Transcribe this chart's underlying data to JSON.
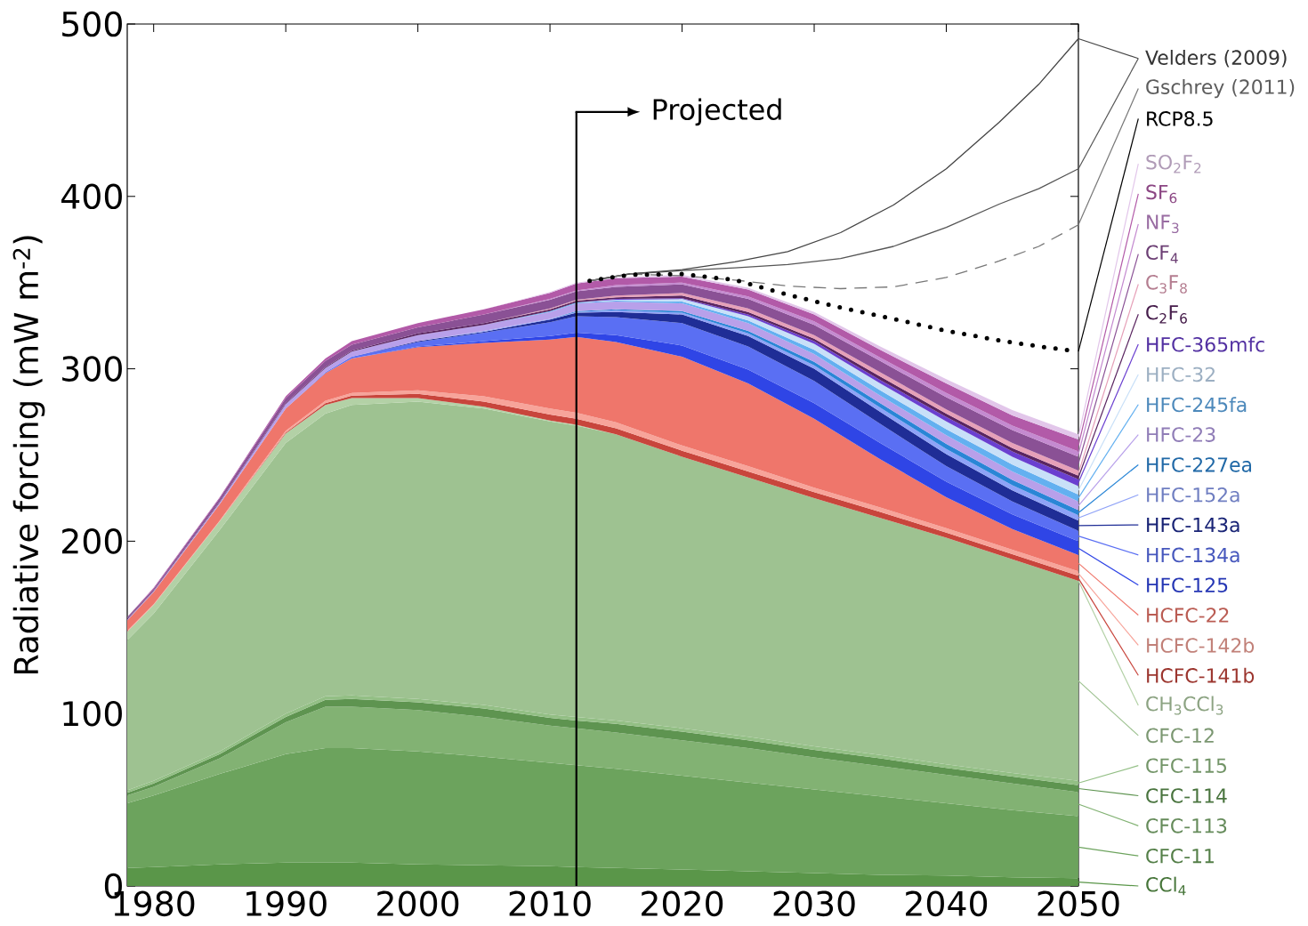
{
  "chart_data": {
    "type": "area",
    "stacked": true,
    "legend": "right",
    "ylabel": "Radiative forcing (mW m$^{-2}$)",
    "x": [
      1978,
      1980,
      1985,
      1990,
      1993,
      1995,
      2000,
      2005,
      2010,
      2012,
      2015,
      2020,
      2025,
      2030,
      2035,
      2040,
      2045,
      2050
    ],
    "xlim": [
      1978,
      2050
    ],
    "ylim": [
      0,
      500
    ],
    "xticks": [
      1980,
      1990,
      2000,
      2010,
      2020,
      2030,
      2040,
      2050
    ],
    "yticks": [
      0,
      100,
      200,
      300,
      400,
      500
    ],
    "ref_lines": [
      {
        "axis": "x",
        "value": 2012,
        "label": "Projected"
      }
    ],
    "series": [
      {
        "name": "CCl$_{4}$",
        "color": "#5a9649",
        "values": [
          10.5,
          11,
          12.5,
          13.5,
          13.5,
          13.5,
          12.5,
          12,
          11.5,
          11,
          10.5,
          9.5,
          8.5,
          7.5,
          6.5,
          6,
          5,
          4.5
        ]
      },
      {
        "name": "CFC-11",
        "color": "#6ca35d",
        "values": [
          37.5,
          41.5,
          52.5,
          63,
          66.5,
          66.5,
          65.5,
          63,
          60,
          59,
          57.5,
          54.5,
          51.5,
          48.5,
          45.5,
          42,
          39,
          36
        ]
      },
      {
        "name": "CFC-113",
        "color": "#82b273",
        "values": [
          4.5,
          5,
          9,
          18.5,
          24,
          24,
          24,
          23,
          21.5,
          21.5,
          21,
          20.5,
          20,
          18.5,
          17.5,
          16.5,
          15.5,
          14
        ]
      },
      {
        "name": "CFC-114",
        "color": "#5e9450",
        "values": [
          1.5,
          2,
          2.5,
          3,
          4,
          4.5,
          4.5,
          5,
          4.5,
          4.5,
          5,
          5,
          4.5,
          4.5,
          4.5,
          4,
          4,
          4
        ]
      },
      {
        "name": "CFC-115",
        "color": "#93bf85",
        "values": [
          1.5,
          1.5,
          1.5,
          2,
          2,
          2,
          2,
          2,
          2,
          2,
          2,
          2,
          2,
          2,
          2,
          2,
          2,
          2.5
        ]
      },
      {
        "name": "CFC-12",
        "color": "#9ec291",
        "values": [
          87,
          97,
          128.5,
          157,
          164,
          168.5,
          172.5,
          172,
          170,
          169,
          166,
          157.5,
          150.5,
          144,
          137.5,
          131.5,
          124,
          116
        ]
      },
      {
        "name": "CH$_{3}$CCl$_{3}$",
        "color": "#b3d1a6",
        "values": [
          5,
          5,
          5,
          5.5,
          5,
          4,
          2,
          1,
          0.5,
          0.5,
          0,
          0,
          0,
          0,
          0,
          0,
          0,
          0
        ]
      },
      {
        "name": "HCFC-141b",
        "color": "#c8453c",
        "values": [
          0,
          0,
          0,
          0.5,
          1,
          1.5,
          2.5,
          3,
          3.5,
          3.5,
          3.5,
          3.5,
          3.5,
          3.5,
          3.5,
          3,
          3,
          3
        ]
      },
      {
        "name": "HCFC-142b",
        "color": "#f7a49a",
        "values": [
          0.5,
          0.5,
          0.5,
          1,
          1.5,
          1.5,
          2,
          3,
          3.5,
          3.5,
          3.5,
          3,
          3,
          2.5,
          2.5,
          2.5,
          2.5,
          2.5
        ]
      },
      {
        "name": "HCFC-22",
        "color": "#ef766b",
        "values": [
          6,
          7,
          9.5,
          13,
          16,
          20,
          25,
          31,
          40,
          44,
          46.5,
          51.5,
          48,
          40,
          28,
          18,
          12,
          9.5
        ]
      },
      {
        "name": "HFC-125",
        "color": "#2f45e6",
        "values": [
          null,
          null,
          null,
          null,
          null,
          0,
          0.5,
          1,
          2,
          2.5,
          4,
          6.5,
          8,
          9,
          9.5,
          9,
          8.5,
          8
        ]
      },
      {
        "name": "HFC-134a",
        "color": "#5a6ff3",
        "values": [
          null,
          null,
          null,
          0,
          0.5,
          1,
          2.5,
          5,
          8,
          9.5,
          10.5,
          13,
          13.5,
          13,
          11,
          9,
          7.5,
          6
        ]
      },
      {
        "name": "HFC-143a",
        "color": "#1f2d96",
        "values": [
          null,
          null,
          null,
          null,
          null,
          0,
          0.5,
          0.5,
          1.5,
          2,
          3,
          5,
          6,
          7,
          7,
          7,
          6.5,
          6
        ]
      },
      {
        "name": "HFC-152a",
        "color": "#8fa2f7",
        "values": [
          null,
          null,
          null,
          null,
          null,
          null,
          0,
          0.5,
          0.5,
          0.5,
          1,
          1,
          1.5,
          2,
          2.5,
          3,
          3,
          3
        ]
      },
      {
        "name": "HFC-227ea",
        "color": "#2a86d6",
        "values": [
          null,
          null,
          null,
          null,
          null,
          null,
          null,
          null,
          0,
          0.5,
          0.5,
          1,
          1.5,
          2,
          2.5,
          3,
          3,
          3
        ]
      },
      {
        "name": "HFC-23",
        "color": "#b8a0ea",
        "values": [
          0.5,
          0.5,
          1,
          2.5,
          2.5,
          3,
          3.5,
          3.5,
          4,
          4.5,
          4.5,
          4.5,
          4.5,
          4.5,
          4.5,
          5,
          5,
          5
        ]
      },
      {
        "name": "HFC-245fa",
        "color": "#63b0f0",
        "values": [
          null,
          null,
          null,
          null,
          null,
          null,
          null,
          0,
          0.5,
          0.5,
          0.5,
          1,
          1.5,
          2.5,
          3,
          3.5,
          4,
          4
        ]
      },
      {
        "name": "HFC-32",
        "color": "#c8e0f8",
        "values": [
          null,
          null,
          null,
          null,
          null,
          null,
          null,
          null,
          null,
          0,
          0.5,
          1.5,
          2.5,
          3.5,
          4,
          4.5,
          4.5,
          5
        ]
      },
      {
        "name": "HFC-365mfc",
        "color": "#6a3fd0",
        "values": [
          null,
          null,
          null,
          null,
          null,
          null,
          null,
          null,
          null,
          0,
          0.5,
          0.5,
          1,
          1.5,
          2,
          2.5,
          3,
          4
        ]
      },
      {
        "name": "C$_{2}$F$_{6}$",
        "color": "#5a2560",
        "values": [
          0.5,
          0.5,
          0.5,
          0.5,
          0.5,
          0.5,
          1,
          1,
          1,
          1,
          1,
          1.5,
          1.5,
          1.5,
          2,
          2,
          2,
          2
        ]
      },
      {
        "name": "C$_{3}$F$_{8}$",
        "color": "#e6a0b8",
        "values": [
          null,
          null,
          null,
          null,
          null,
          null,
          null,
          0,
          0.5,
          0.5,
          1,
          1.5,
          2,
          2,
          2.5,
          2.5,
          3,
          3
        ]
      },
      {
        "name": "CF$_{4}$",
        "color": "#8a5195",
        "values": [
          1,
          1,
          2,
          3,
          3.5,
          3.5,
          3.5,
          5,
          5,
          5,
          5,
          5,
          5.5,
          6,
          6.5,
          7,
          7.5,
          8
        ]
      },
      {
        "name": "NF$_{3}$",
        "color": "#c48ad0",
        "values": [
          null,
          null,
          null,
          null,
          null,
          null,
          null,
          0,
          0.5,
          0.5,
          1,
          1,
          1.5,
          2,
          2,
          2.5,
          2.5,
          3
        ]
      },
      {
        "name": "SF$_{6}$",
        "color": "#b25aa8",
        "values": [
          0,
          0.5,
          0.5,
          1,
          1.5,
          2,
          2.5,
          3,
          3.5,
          4,
          4,
          3.5,
          4,
          4,
          4.5,
          5.5,
          6,
          7
        ]
      },
      {
        "name": "SO$_{2}$F$_{2}$",
        "color": "#e2c6ea",
        "values": [
          null,
          null,
          null,
          null,
          null,
          null,
          null,
          0,
          0.5,
          0.5,
          0.5,
          1,
          1,
          1.5,
          2,
          2.5,
          3,
          3
        ]
      },
      {
        "type": "line",
        "name": "Velders (2009)",
        "color": "#444444",
        "line_style": "solid",
        "x": [
          2013,
          2016,
          2020,
          2024,
          2028,
          2032,
          2036,
          2040,
          2044,
          2047,
          2050
        ],
        "values": [
          351,
          355,
          357.5,
          362,
          368,
          379,
          395,
          416,
          443,
          465,
          491.5
        ]
      },
      {
        "type": "line",
        "color": "#555555",
        "line_style": "solid",
        "x": [
          2013,
          2016,
          2020,
          2024,
          2028,
          2032,
          2036,
          2040,
          2044,
          2047,
          2050
        ],
        "values": [
          351,
          355,
          357,
          358.5,
          360.5,
          364,
          371,
          382,
          395.5,
          404.5,
          416
        ]
      },
      {
        "type": "line",
        "name": "Gschrey (2011)",
        "color": "#777777",
        "line_style": "dashed",
        "x": [
          2013,
          2016,
          2020,
          2024,
          2028,
          2032,
          2036,
          2040,
          2044,
          2047,
          2050
        ],
        "values": [
          351,
          355,
          354,
          351.5,
          348,
          346.5,
          347.5,
          353,
          362.5,
          371,
          383.5
        ]
      },
      {
        "type": "line",
        "name": "RCP8.5",
        "color": "#000000",
        "line_style": "dotted",
        "x": [
          2013,
          2016,
          2020,
          2024,
          2028,
          2032,
          2036,
          2040,
          2044,
          2047,
          2050
        ],
        "values": [
          351,
          354.5,
          355,
          351.5,
          343,
          335.5,
          329,
          322,
          316.5,
          313,
          310
        ]
      }
    ]
  }
}
